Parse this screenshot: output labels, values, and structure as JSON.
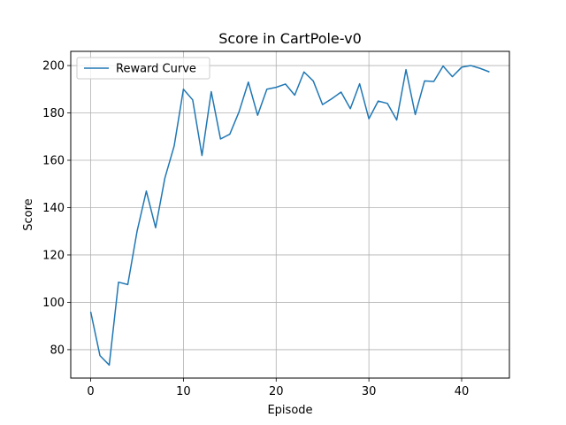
{
  "chart_data": {
    "type": "line",
    "title": "Score in CartPole-v0",
    "xlabel": "Episode",
    "ylabel": "Score",
    "xlim": [
      -2.15,
      45.15
    ],
    "ylim": [
      68,
      206
    ],
    "xticks": [
      0,
      10,
      20,
      30,
      40
    ],
    "yticks": [
      80,
      100,
      120,
      140,
      160,
      180,
      200
    ],
    "grid": true,
    "legend": "upper-left",
    "series": [
      {
        "name": "Reward Curve",
        "color": "#1f77b4",
        "x": [
          0,
          1,
          2,
          3,
          4,
          5,
          6,
          7,
          8,
          9,
          10,
          11,
          12,
          13,
          14,
          15,
          16,
          17,
          18,
          19,
          20,
          21,
          22,
          23,
          24,
          25,
          26,
          27,
          28,
          29,
          30,
          31,
          32,
          33,
          34,
          35,
          36,
          37,
          38,
          39,
          40,
          41,
          42,
          43
        ],
        "y": [
          96,
          77.5,
          73.5,
          108.5,
          107.5,
          130,
          147,
          131.5,
          152.5,
          166,
          190,
          185.5,
          162,
          189,
          169,
          171,
          180.5,
          193,
          179,
          190,
          190.8,
          192.2,
          187.5,
          197.3,
          193.5,
          183.5,
          186,
          188.8,
          181.8,
          192.3,
          177.5,
          185,
          184,
          177,
          198.3,
          179.3,
          193.5,
          193.3,
          199.8,
          195.3,
          199.3,
          200,
          198.8,
          197.3
        ]
      }
    ]
  }
}
